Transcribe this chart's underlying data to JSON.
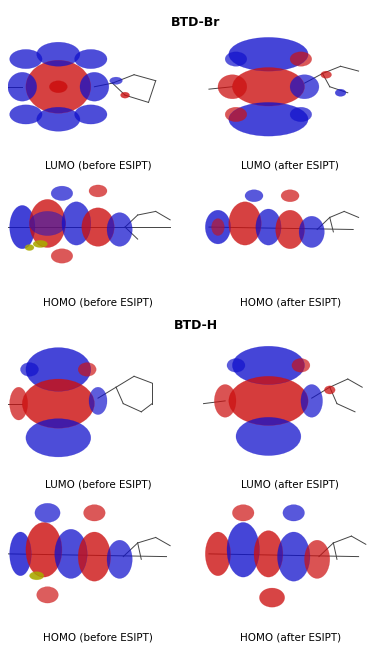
{
  "title1": "BTD-Br",
  "title2": "BTD-H",
  "labels": [
    [
      "LUMO (before ESIPT)",
      "LUMO (after ESIPT)"
    ],
    [
      "HOMO (before ESIPT)",
      "HOMO (after ESIPT)"
    ],
    [
      "LUMO (before ESIPT)",
      "LUMO (after ESIPT)"
    ],
    [
      "HOMO (before ESIPT)",
      "HOMO (after ESIPT)"
    ]
  ],
  "background_color": "#ffffff",
  "label_fontsize": 7.5,
  "title_fontsize": 9,
  "figsize": [
    3.92,
    6.51
  ],
  "dpi": 100,
  "red_color": "#cc1111",
  "blue_color": "#1111cc",
  "blue_light": "#4444ee",
  "red_light": "#ee4444"
}
